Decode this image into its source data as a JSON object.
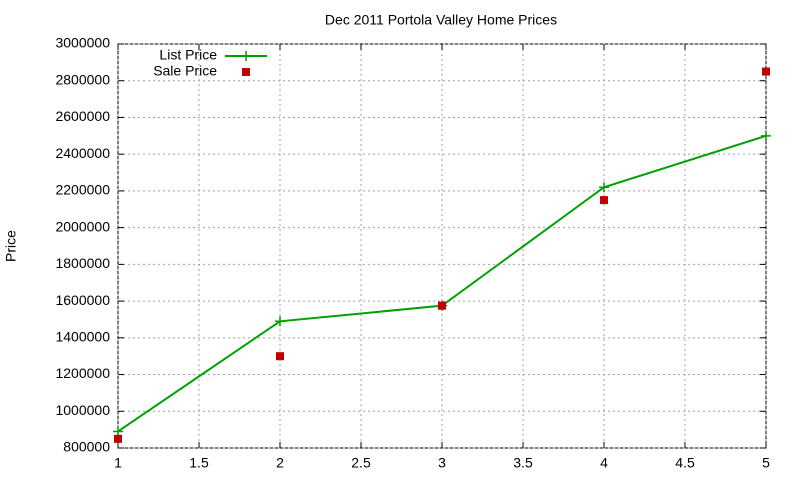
{
  "chart_data": {
    "type": "line",
    "title": "Dec 2011 Portola Valley Home Prices",
    "y_label": "Price",
    "x": [
      1,
      2,
      3,
      4,
      5
    ],
    "series": [
      {
        "name": "List Price",
        "color": "#00a000",
        "style": "linespoints",
        "values": [
          890000,
          1490000,
          1575000,
          2220000,
          2500000
        ]
      },
      {
        "name": "Sale Price",
        "color": "#c00000",
        "style": "points",
        "values": [
          850000,
          1300000,
          1575000,
          2150000,
          2850000
        ]
      }
    ],
    "xlim": [
      1,
      5
    ],
    "xticks": [
      1,
      1.5,
      2,
      2.5,
      3,
      3.5,
      4,
      4.5,
      5
    ],
    "ylim": [
      800000,
      3000000
    ],
    "yticks": [
      800000,
      1000000,
      1200000,
      1400000,
      1600000,
      1800000,
      2000000,
      2200000,
      2400000,
      2600000,
      2800000,
      3000000
    ],
    "grid": true,
    "legend": "top-left"
  }
}
